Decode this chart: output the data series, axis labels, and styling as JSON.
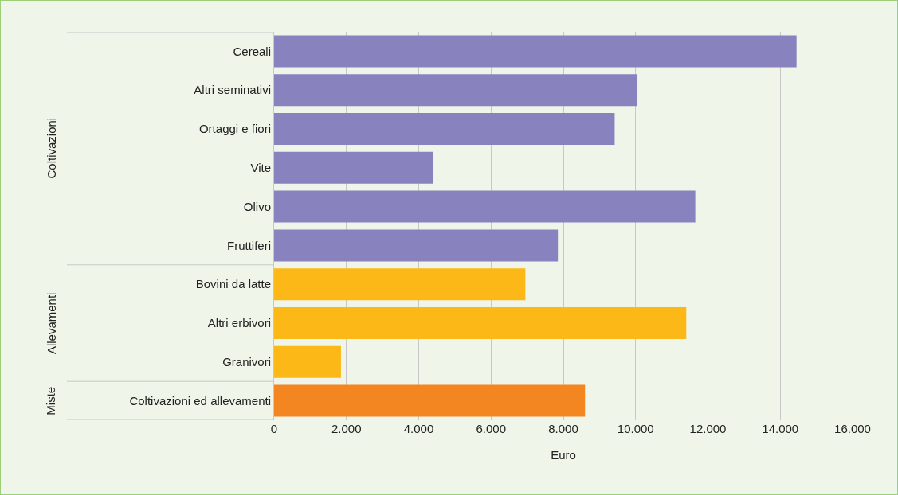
{
  "chart_data": {
    "type": "bar",
    "orientation": "horizontal",
    "xlabel": "Euro",
    "categories": [
      "Cereali",
      "Altri seminativi",
      "Ortaggi e fiori",
      "Vite",
      "Olivo",
      "Fruttiferi",
      "Bovini da latte",
      "Altri erbivori",
      "Granivori",
      "Coltivazioni ed allevamenti"
    ],
    "values": [
      14450,
      10050,
      9420,
      4400,
      11650,
      7850,
      6950,
      11400,
      1850,
      8600
    ],
    "colors": [
      "#8883be",
      "#8883be",
      "#8883be",
      "#8883be",
      "#8883be",
      "#8883be",
      "#fbb817",
      "#fbb817",
      "#fbb817",
      "#f38621"
    ],
    "xlim": [
      0,
      16000
    ],
    "xticks": [
      0,
      {
        "value": 2000,
        "label": "2.000"
      },
      {
        "value": 4000,
        "label": "4.000"
      },
      {
        "value": 6000,
        "label": "6.000"
      },
      {
        "value": 8000,
        "label": "8.000"
      },
      {
        "value": 10000,
        "label": "10.000"
      },
      {
        "value": 12000,
        "label": "12.000"
      },
      {
        "value": 14000,
        "label": "14.000"
      },
      {
        "value": 16000,
        "label": "16.000"
      }
    ],
    "grid": "x",
    "legend": false,
    "annotations": [
      "Coltivazioni",
      "Allevamenti",
      "Miste"
    ]
  }
}
